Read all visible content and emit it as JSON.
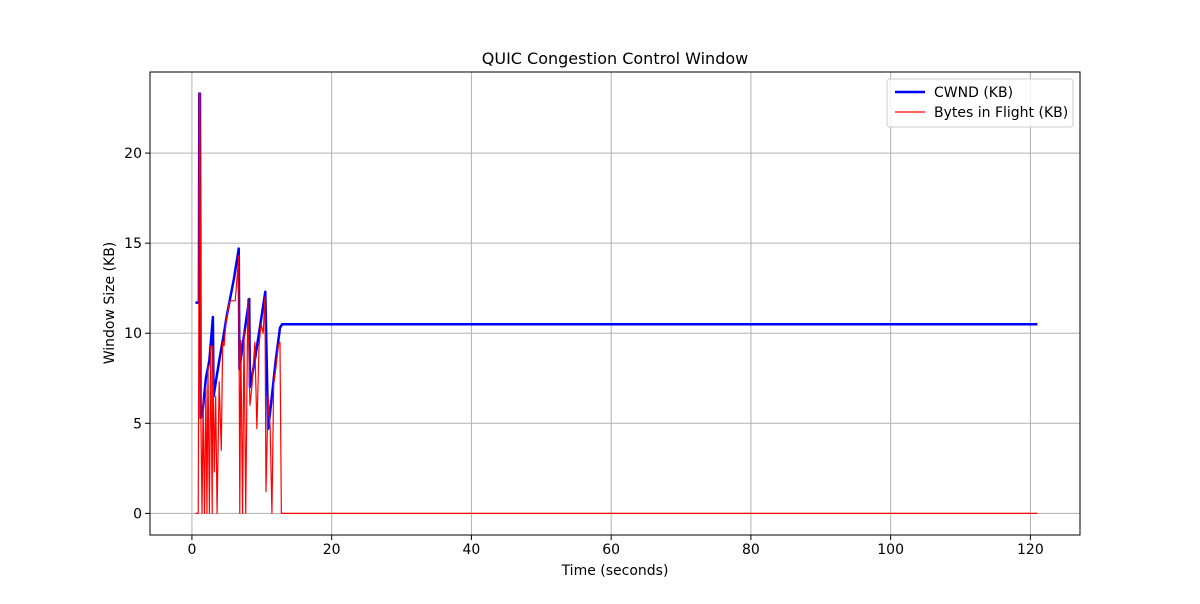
{
  "chart_data": {
    "type": "line",
    "title": "QUIC Congestion Control Window",
    "xlabel": "Time (seconds)",
    "ylabel": "Window Size (KB)",
    "xlim": [
      -6.0,
      127.1
    ],
    "ylim": [
      -1.2,
      24.5
    ],
    "xticks": [
      0,
      20,
      40,
      60,
      80,
      100,
      120
    ],
    "yticks": [
      0,
      5,
      10,
      15,
      20
    ],
    "grid": true,
    "legend_position": "top-right",
    "series": [
      {
        "name": "CWND (KB)",
        "color": "#0000ff",
        "points": [
          [
            0.5,
            11.7
          ],
          [
            1.0,
            11.7
          ],
          [
            1.05,
            23.3
          ],
          [
            1.15,
            23.3
          ],
          [
            1.25,
            5.3
          ],
          [
            1.5,
            5.5
          ],
          [
            2.0,
            7.5
          ],
          [
            2.5,
            8.5
          ],
          [
            3.0,
            10.9
          ],
          [
            3.1,
            6.5
          ],
          [
            3.5,
            7.5
          ],
          [
            4.0,
            8.7
          ],
          [
            4.5,
            9.8
          ],
          [
            5.0,
            11.0
          ],
          [
            6.0,
            13.0
          ],
          [
            6.7,
            14.7
          ],
          [
            6.8,
            8.0
          ],
          [
            7.5,
            10.0
          ],
          [
            8.2,
            11.9
          ],
          [
            8.3,
            7.0
          ],
          [
            9.0,
            8.5
          ],
          [
            9.8,
            10.5
          ],
          [
            10.5,
            12.3
          ],
          [
            10.9,
            4.7
          ],
          [
            11.3,
            6.0
          ],
          [
            12.0,
            8.5
          ],
          [
            12.6,
            10.3
          ],
          [
            12.9,
            10.5
          ],
          [
            20.0,
            10.5
          ],
          [
            60.0,
            10.5
          ],
          [
            100.0,
            10.5
          ],
          [
            121.0,
            10.5
          ]
        ]
      },
      {
        "name": "Bytes in Flight (KB)",
        "color": "#ff0000",
        "points": [
          [
            0.5,
            0.0
          ],
          [
            0.9,
            0.0
          ],
          [
            1.0,
            11.7
          ],
          [
            1.05,
            23.3
          ],
          [
            1.15,
            23.3
          ],
          [
            1.3,
            4.7
          ],
          [
            1.45,
            0.0
          ],
          [
            1.6,
            6.3
          ],
          [
            1.8,
            0.0
          ],
          [
            2.0,
            7.0
          ],
          [
            2.15,
            0.0
          ],
          [
            2.3,
            8.2
          ],
          [
            2.5,
            0.0
          ],
          [
            2.7,
            9.3
          ],
          [
            2.9,
            0.0
          ],
          [
            3.0,
            9.3
          ],
          [
            3.2,
            2.3
          ],
          [
            3.4,
            6.5
          ],
          [
            3.6,
            0.0
          ],
          [
            3.9,
            7.3
          ],
          [
            4.2,
            3.5
          ],
          [
            4.4,
            9.5
          ],
          [
            4.6,
            9.3
          ],
          [
            4.9,
            10.7
          ],
          [
            5.4,
            11.8
          ],
          [
            6.2,
            11.8
          ],
          [
            6.7,
            14.3
          ],
          [
            6.85,
            0.0
          ],
          [
            7.0,
            9.6
          ],
          [
            7.25,
            0.0
          ],
          [
            7.45,
            10.2
          ],
          [
            7.7,
            0.0
          ],
          [
            8.0,
            11.9
          ],
          [
            8.3,
            6.0
          ],
          [
            8.6,
            7.1
          ],
          [
            9.0,
            9.5
          ],
          [
            9.3,
            4.7
          ],
          [
            9.6,
            9.3
          ],
          [
            9.9,
            10.5
          ],
          [
            10.2,
            10.0
          ],
          [
            10.45,
            12.0
          ],
          [
            10.6,
            1.2
          ],
          [
            10.9,
            6.5
          ],
          [
            11.2,
            4.7
          ],
          [
            11.45,
            0.0
          ],
          [
            11.7,
            7.2
          ],
          [
            12.0,
            8.0
          ],
          [
            12.4,
            9.4
          ],
          [
            12.6,
            9.5
          ],
          [
            12.8,
            0.0
          ],
          [
            20.0,
            0.0
          ],
          [
            60.0,
            0.0
          ],
          [
            100.0,
            0.0
          ],
          [
            121.0,
            0.0
          ]
        ]
      }
    ]
  }
}
